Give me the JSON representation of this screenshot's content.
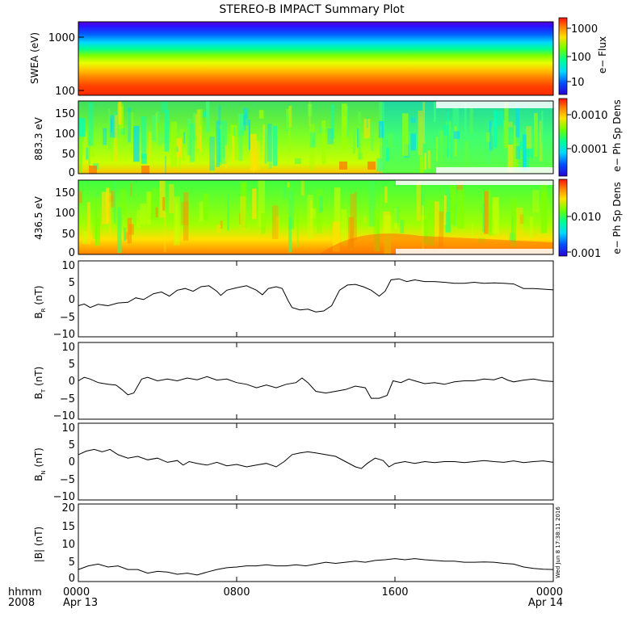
{
  "chart_data": {
    "type": "multi-panel time series",
    "title": "STEREO-B IMPACT Summary Plot",
    "x": {
      "tick_labels": [
        "0000",
        "0800",
        "1600",
        "0000"
      ],
      "date_labels": [
        "Apr 13",
        "Apr 14"
      ],
      "row_labels": [
        "hhmm",
        "2008"
      ],
      "hours_range": [
        0,
        24
      ]
    },
    "timestamp": "Wed Jun  8 17:38:11 2016",
    "panels": [
      {
        "id": "swea",
        "type": "spectrogram",
        "ylabel": "SWEA (eV)",
        "yscale": "log",
        "ylim": [
          90,
          2000
        ],
        "yticks": [
          "1000",
          "100"
        ],
        "colorbar_label": "e− Flux",
        "colorbar_ticks": [
          "1000",
          "100",
          "10"
        ]
      },
      {
        "id": "pad883",
        "type": "spectrogram",
        "ylabel": "883.3 eV",
        "ylim": [
          0,
          180
        ],
        "yticks": [
          "150",
          "100",
          "50",
          "0"
        ],
        "colorbar_label": "e− Ph Sp Dens",
        "colorbar_ticks": [
          "0.0010",
          "0.0001"
        ]
      },
      {
        "id": "pad436",
        "type": "spectrogram",
        "ylabel": "436.5 eV",
        "ylim": [
          0,
          180
        ],
        "yticks": [
          "150",
          "100",
          "50",
          "0"
        ],
        "colorbar_label": "e− Ph Sp Dens",
        "colorbar_ticks": [
          "0.010",
          "0.001"
        ]
      },
      {
        "id": "br",
        "type": "line",
        "ylabel_main": "B",
        "ylabel_sub": "R",
        "ylabel_unit": " (nT)",
        "ylim": [
          -11,
          11
        ],
        "yticks": [
          "10",
          "5",
          "0",
          "−5",
          "−10"
        ],
        "points": [
          [
            0,
            -2
          ],
          [
            0.3,
            -1.5
          ],
          [
            0.6,
            -2.5
          ],
          [
            1,
            -1.6
          ],
          [
            1.5,
            -2
          ],
          [
            2,
            -1.2
          ],
          [
            2.5,
            -1
          ],
          [
            2.9,
            0.3
          ],
          [
            3.3,
            -0.2
          ],
          [
            3.8,
            1.5
          ],
          [
            4.2,
            2
          ],
          [
            4.6,
            0.8
          ],
          [
            5,
            2.5
          ],
          [
            5.4,
            3
          ],
          [
            5.8,
            2.2
          ],
          [
            6.2,
            3.5
          ],
          [
            6.6,
            3.8
          ],
          [
            7,
            2.2
          ],
          [
            7.2,
            1
          ],
          [
            7.5,
            2.5
          ],
          [
            8,
            3.2
          ],
          [
            8.5,
            3.8
          ],
          [
            9,
            2.5
          ],
          [
            9.3,
            1.2
          ],
          [
            9.6,
            3
          ],
          [
            10,
            3.5
          ],
          [
            10.3,
            3
          ],
          [
            10.6,
            -0.5
          ],
          [
            10.8,
            -2.5
          ],
          [
            11.2,
            -3.2
          ],
          [
            11.6,
            -3
          ],
          [
            12,
            -3.8
          ],
          [
            12.4,
            -3.5
          ],
          [
            12.8,
            -2
          ],
          [
            13.2,
            2.5
          ],
          [
            13.6,
            4
          ],
          [
            14,
            4.2
          ],
          [
            14.4,
            3.5
          ],
          [
            14.8,
            2.5
          ],
          [
            15.2,
            0.8
          ],
          [
            15.5,
            2.2
          ],
          [
            15.8,
            5.5
          ],
          [
            16.2,
            5.8
          ],
          [
            16.6,
            5
          ],
          [
            17,
            5.5
          ],
          [
            17.5,
            5
          ],
          [
            18,
            5
          ],
          [
            18.5,
            4.8
          ],
          [
            19,
            4.5
          ],
          [
            19.5,
            4.5
          ],
          [
            20,
            4.8
          ],
          [
            20.5,
            4.5
          ],
          [
            21,
            4.6
          ],
          [
            21.5,
            4.5
          ],
          [
            22,
            4.3
          ],
          [
            22.5,
            3
          ],
          [
            23,
            3
          ],
          [
            23.5,
            2.8
          ],
          [
            24,
            2.6
          ]
        ]
      },
      {
        "id": "bt",
        "type": "line",
        "ylabel_main": "B",
        "ylabel_sub": "T",
        "ylabel_unit": " (nT)",
        "ylim": [
          -11,
          11
        ],
        "yticks": [
          "10",
          "5",
          "0",
          "−5",
          "−10"
        ],
        "points": [
          [
            0,
            0
          ],
          [
            0.3,
            1
          ],
          [
            0.6,
            0.5
          ],
          [
            1,
            -0.5
          ],
          [
            1.5,
            -1
          ],
          [
            1.9,
            -1.2
          ],
          [
            2.2,
            -2.5
          ],
          [
            2.5,
            -4
          ],
          [
            2.8,
            -3.5
          ],
          [
            3.2,
            0.5
          ],
          [
            3.5,
            1
          ],
          [
            4,
            0
          ],
          [
            4.5,
            0.5
          ],
          [
            5,
            0
          ],
          [
            5.5,
            0.8
          ],
          [
            6,
            0.3
          ],
          [
            6.5,
            1.2
          ],
          [
            7,
            0.2
          ],
          [
            7.5,
            0.5
          ],
          [
            8,
            -0.5
          ],
          [
            8.5,
            -1
          ],
          [
            9,
            -2
          ],
          [
            9.5,
            -1.2
          ],
          [
            10,
            -2
          ],
          [
            10.5,
            -1
          ],
          [
            11,
            -0.5
          ],
          [
            11.3,
            0.8
          ],
          [
            11.6,
            -0.5
          ],
          [
            12,
            -3
          ],
          [
            12.5,
            -3.5
          ],
          [
            13,
            -3
          ],
          [
            13.5,
            -2.5
          ],
          [
            14,
            -1.5
          ],
          [
            14.5,
            -2
          ],
          [
            14.8,
            -5
          ],
          [
            15.2,
            -5
          ],
          [
            15.6,
            -4.2
          ],
          [
            15.9,
            0
          ],
          [
            16.3,
            -0.5
          ],
          [
            16.7,
            0.5
          ],
          [
            17,
            0
          ],
          [
            17.5,
            -0.8
          ],
          [
            18,
            -0.5
          ],
          [
            18.5,
            -1
          ],
          [
            19,
            -0.3
          ],
          [
            19.5,
            0
          ],
          [
            20,
            0
          ],
          [
            20.5,
            0.5
          ],
          [
            21,
            0.3
          ],
          [
            21.4,
            1
          ],
          [
            21.7,
            0.2
          ],
          [
            22,
            -0.3
          ],
          [
            22.5,
            0.2
          ],
          [
            23,
            0.5
          ],
          [
            23.5,
            0
          ],
          [
            24,
            -0.2
          ]
        ]
      },
      {
        "id": "bn",
        "type": "line",
        "ylabel_main": "B",
        "ylabel_sub": "N",
        "ylabel_unit": " (nT)",
        "ylim": [
          -11,
          11
        ],
        "yticks": [
          "10",
          "5",
          "0",
          "−5",
          "−10"
        ],
        "points": [
          [
            0,
            2
          ],
          [
            0.4,
            3
          ],
          [
            0.8,
            3.5
          ],
          [
            1.2,
            2.8
          ],
          [
            1.6,
            3.5
          ],
          [
            2,
            2
          ],
          [
            2.5,
            1
          ],
          [
            3,
            1.5
          ],
          [
            3.5,
            0.5
          ],
          [
            4,
            1
          ],
          [
            4.5,
            -0.2
          ],
          [
            5,
            0.3
          ],
          [
            5.3,
            -1
          ],
          [
            5.6,
            0
          ],
          [
            6,
            -0.5
          ],
          [
            6.5,
            -1
          ],
          [
            7,
            -0.2
          ],
          [
            7.5,
            -1.2
          ],
          [
            8,
            -0.8
          ],
          [
            8.5,
            -1.5
          ],
          [
            9,
            -1
          ],
          [
            9.5,
            -0.5
          ],
          [
            10,
            -1.5
          ],
          [
            10.4,
            0
          ],
          [
            10.8,
            2
          ],
          [
            11.2,
            2.5
          ],
          [
            11.6,
            2.8
          ],
          [
            12,
            2.5
          ],
          [
            12.5,
            2
          ],
          [
            13,
            1.5
          ],
          [
            13.5,
            0
          ],
          [
            14,
            -1.5
          ],
          [
            14.3,
            -2
          ],
          [
            14.6,
            -0.5
          ],
          [
            15,
            1
          ],
          [
            15.4,
            0.3
          ],
          [
            15.7,
            -1.5
          ],
          [
            16,
            -0.5
          ],
          [
            16.5,
            0
          ],
          [
            17,
            -0.5
          ],
          [
            17.5,
            0
          ],
          [
            18,
            -0.3
          ],
          [
            18.5,
            0
          ],
          [
            19,
            0
          ],
          [
            19.5,
            -0.3
          ],
          [
            20,
            0
          ],
          [
            20.5,
            0.3
          ],
          [
            21,
            0
          ],
          [
            21.5,
            -0.2
          ],
          [
            22,
            0.2
          ],
          [
            22.5,
            -0.3
          ],
          [
            23,
            0
          ],
          [
            23.5,
            0.2
          ],
          [
            24,
            -0.2
          ]
        ]
      },
      {
        "id": "bmag",
        "type": "line",
        "ylabel_main": "|B| (nT)",
        "ylim": [
          -0.8,
          20.5
        ],
        "yticks": [
          "20",
          "15",
          "10",
          "5",
          "0"
        ],
        "points": [
          [
            0,
            2.5
          ],
          [
            0.5,
            3.5
          ],
          [
            1,
            4
          ],
          [
            1.5,
            3.2
          ],
          [
            2,
            3.5
          ],
          [
            2.5,
            2.5
          ],
          [
            3,
            2.5
          ],
          [
            3.5,
            1.5
          ],
          [
            4,
            2
          ],
          [
            4.5,
            1.8
          ],
          [
            5,
            1.2
          ],
          [
            5.5,
            1.5
          ],
          [
            6,
            1
          ],
          [
            6.5,
            1.8
          ],
          [
            7,
            2.5
          ],
          [
            7.5,
            3
          ],
          [
            8,
            3.2
          ],
          [
            8.5,
            3.5
          ],
          [
            9,
            3.5
          ],
          [
            9.5,
            3.8
          ],
          [
            10,
            3.5
          ],
          [
            10.5,
            3.5
          ],
          [
            11,
            3.8
          ],
          [
            11.5,
            3.5
          ],
          [
            12,
            4
          ],
          [
            12.5,
            4.5
          ],
          [
            13,
            4.2
          ],
          [
            13.5,
            4.5
          ],
          [
            14,
            4.8
          ],
          [
            14.5,
            4.5
          ],
          [
            15,
            5
          ],
          [
            15.5,
            5.2
          ],
          [
            16,
            5.5
          ],
          [
            16.5,
            5.2
          ],
          [
            17,
            5.5
          ],
          [
            17.5,
            5.2
          ],
          [
            18,
            5
          ],
          [
            18.5,
            4.8
          ],
          [
            19,
            4.8
          ],
          [
            19.5,
            4.5
          ],
          [
            20,
            4.5
          ],
          [
            20.5,
            4.6
          ],
          [
            21,
            4.5
          ],
          [
            21.5,
            4.2
          ],
          [
            22,
            4
          ],
          [
            22.5,
            3.2
          ],
          [
            23,
            2.8
          ],
          [
            23.5,
            2.6
          ],
          [
            24,
            2.5
          ]
        ]
      }
    ]
  }
}
